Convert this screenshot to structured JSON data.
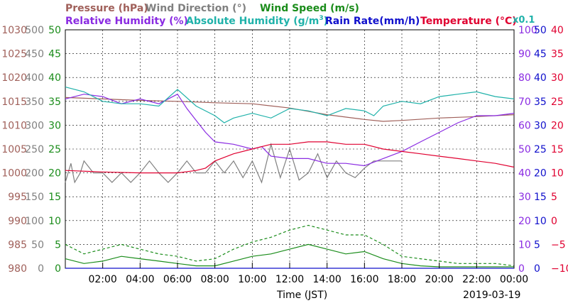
{
  "chart_data": {
    "type": "line",
    "title_rows": [
      [
        {
          "key": "pressure",
          "text": "Pressure (hPa)",
          "color": "#a0605a"
        },
        {
          "key": "wind_dir",
          "text": "Wind Direction (°)",
          "color": "#808080"
        },
        {
          "key": "wind_speed",
          "text": "Wind Speed (m/s)",
          "color": "#1a8c1a"
        }
      ],
      [
        {
          "key": "rel_humidity",
          "text": "Relative Humidity (%)",
          "color": "#8a2be2"
        },
        {
          "key": "abs_humidity",
          "text": "Absolute Humidity (g/m",
          "sup": "3",
          "tail": ")",
          "color": "#20b2aa"
        },
        {
          "key": "rain_rate",
          "text": "Rain Rate(mm/h)",
          "color": "#1010cc"
        },
        {
          "key": "temperature",
          "text": "Temperature  (°C)",
          "color": "#e00030"
        }
      ]
    ],
    "abs_humidity_scale_note": "x0.1",
    "xlabel": "Time (JST)",
    "date": "2019-03-19",
    "x_range_hours": [
      0,
      24
    ],
    "x_ticks": [
      "02:00",
      "04:00",
      "06:00",
      "08:00",
      "10:00",
      "12:00",
      "14:00",
      "16:00",
      "18:00",
      "20:00",
      "22:00",
      "00:00"
    ],
    "grid": true,
    "left_axes": [
      {
        "key": "pressure",
        "color": "#a0605a",
        "ticks": [
          "1030",
          "1025",
          "1020",
          "1015",
          "1010",
          "1005",
          "1000",
          "995",
          "990",
          "985",
          "980"
        ],
        "range": [
          980,
          1030
        ]
      },
      {
        "key": "wind_dir",
        "color": "#808080",
        "ticks": [
          "500",
          "450",
          "400",
          "350",
          "300",
          "250",
          "200",
          "150",
          "100",
          "50",
          "0"
        ],
        "range": [
          0,
          500
        ]
      },
      {
        "key": "wind_speed",
        "color": "#1a8c1a",
        "ticks": [
          "50",
          "45",
          "40",
          "35",
          "30",
          "25",
          "20",
          "15",
          "10",
          "5",
          "0"
        ],
        "range": [
          0,
          50
        ]
      }
    ],
    "right_axes": [
      {
        "key": "rel_humidity",
        "color": "#8a2be2",
        "ticks": [
          "100",
          "90",
          "80",
          "70",
          "60",
          "50",
          "40",
          "30",
          "20",
          "10",
          "0"
        ],
        "range": [
          0,
          100
        ]
      },
      {
        "key": "rain_rate",
        "color": "#1010cc",
        "ticks": [
          "50",
          "45",
          "40",
          "35",
          "30",
          "25",
          "20",
          "15",
          "10",
          "5",
          "0"
        ],
        "range": [
          0,
          50
        ]
      },
      {
        "key": "temperature",
        "color": "#e00030",
        "ticks": [
          "40",
          "35",
          "30",
          "25",
          "20",
          "15",
          "10",
          "5",
          "0",
          "−5",
          "−10"
        ],
        "range": [
          -10,
          40
        ]
      }
    ],
    "series": [
      {
        "name": "Pressure",
        "axis": "pressure",
        "color": "#a0605a",
        "x": [
          0,
          2,
          4,
          6,
          8,
          10,
          12,
          14,
          16,
          17,
          18,
          20,
          22,
          24
        ],
        "y": [
          1015.8,
          1015.5,
          1015.2,
          1015.0,
          1014.7,
          1014.5,
          1013.6,
          1012.2,
          1011.2,
          1010.8,
          1011.0,
          1011.5,
          1011.8,
          1012.2
        ]
      },
      {
        "name": "Wind Direction",
        "axis": "wind_dir",
        "color": "#808080",
        "x": [
          0,
          0.3,
          0.5,
          0.8,
          1,
          1.5,
          2,
          2.5,
          3,
          3.5,
          4,
          4.5,
          5,
          5.5,
          6,
          6.5,
          7,
          7.5,
          8,
          8.5,
          9,
          9.5,
          10,
          10.5,
          11,
          11.5,
          12,
          12.5,
          13,
          13.5,
          14,
          14.5,
          15,
          15.5,
          16,
          16.5,
          17,
          17.5,
          18
        ],
        "y": [
          180,
          220,
          180,
          200,
          225,
          200,
          200,
          180,
          200,
          180,
          200,
          225,
          200,
          180,
          200,
          225,
          200,
          200,
          225,
          200,
          225,
          190,
          225,
          180,
          260,
          190,
          250,
          185,
          200,
          240,
          190,
          225,
          200,
          190,
          210,
          225,
          225,
          225,
          225
        ]
      },
      {
        "name": "Wind Speed (avg)",
        "axis": "wind_speed",
        "color": "#1a8c1a",
        "dash": false,
        "x": [
          0,
          1,
          2,
          3,
          4,
          5,
          6,
          7,
          8,
          9,
          10,
          11,
          12,
          13,
          14,
          15,
          16,
          17,
          18,
          19,
          20,
          21,
          22,
          23,
          24
        ],
        "y": [
          2,
          1,
          1.5,
          2.5,
          2,
          1.5,
          1,
          0.5,
          0.5,
          1.5,
          2.5,
          3,
          4,
          5,
          4,
          3,
          3.5,
          2,
          1,
          0.5,
          0.3,
          0.3,
          0.3,
          0.3,
          0.3
        ]
      },
      {
        "name": "Wind Speed (max)",
        "axis": "wind_speed",
        "color": "#1a8c1a",
        "dash": true,
        "x": [
          0,
          1,
          2,
          3,
          4,
          5,
          6,
          7,
          8,
          9,
          10,
          11,
          12,
          13,
          14,
          15,
          16,
          17,
          18,
          19,
          20,
          21,
          22,
          23,
          24
        ],
        "y": [
          5,
          3,
          4,
          5,
          4,
          3,
          2.5,
          1.5,
          2,
          4,
          5.5,
          6.5,
          8,
          9,
          8,
          7,
          7,
          5,
          2.5,
          2,
          1.5,
          1,
          1,
          1,
          0.5
        ]
      },
      {
        "name": "Relative Humidity",
        "axis": "rel_humidity",
        "color": "#8a2be2",
        "x": [
          0,
          1,
          2,
          3,
          4,
          5,
          6,
          6.5,
          7,
          7.5,
          8,
          9,
          10,
          10.5,
          11,
          12,
          13,
          14,
          15,
          16,
          17,
          18,
          19,
          20,
          21,
          22,
          23,
          24
        ],
        "y": [
          71,
          73,
          72,
          69,
          71,
          69,
          73,
          67,
          62,
          57,
          53,
          52,
          50,
          51,
          47,
          46,
          46,
          44,
          44,
          43,
          46,
          49,
          53,
          57,
          61,
          64,
          64,
          65
        ]
      },
      {
        "name": "Absolute Humidity",
        "axis": "wind_dir",
        "color": "#20b2aa",
        "x": [
          0,
          1,
          2,
          3,
          4,
          5,
          6,
          7,
          8,
          8.5,
          9,
          10,
          11,
          12,
          13,
          14,
          15,
          16,
          16.5,
          17,
          18,
          19,
          20,
          21,
          22,
          23,
          24
        ],
        "y": [
          380,
          370,
          350,
          345,
          345,
          340,
          375,
          340,
          320,
          305,
          315,
          325,
          315,
          335,
          330,
          320,
          335,
          330,
          320,
          340,
          350,
          345,
          360,
          365,
          370,
          360,
          355
        ]
      },
      {
        "name": "Rain Rate",
        "axis": "rain_rate",
        "color": "#1010cc",
        "x": [
          0,
          24
        ],
        "y": [
          0,
          0
        ]
      },
      {
        "name": "Temperature",
        "axis": "temperature",
        "color": "#e00030",
        "x": [
          0,
          2,
          4,
          6,
          7,
          7.5,
          8,
          9,
          10,
          11,
          12,
          13,
          14,
          15,
          16,
          17,
          18,
          19,
          20,
          21,
          22,
          23,
          24
        ],
        "y": [
          10.5,
          10.2,
          10.0,
          10.0,
          10.5,
          11,
          12.5,
          14,
          15,
          16,
          16,
          16.5,
          16.5,
          16,
          16,
          15,
          14.5,
          14,
          13.5,
          13,
          12.5,
          12,
          11.2
        ]
      }
    ]
  }
}
